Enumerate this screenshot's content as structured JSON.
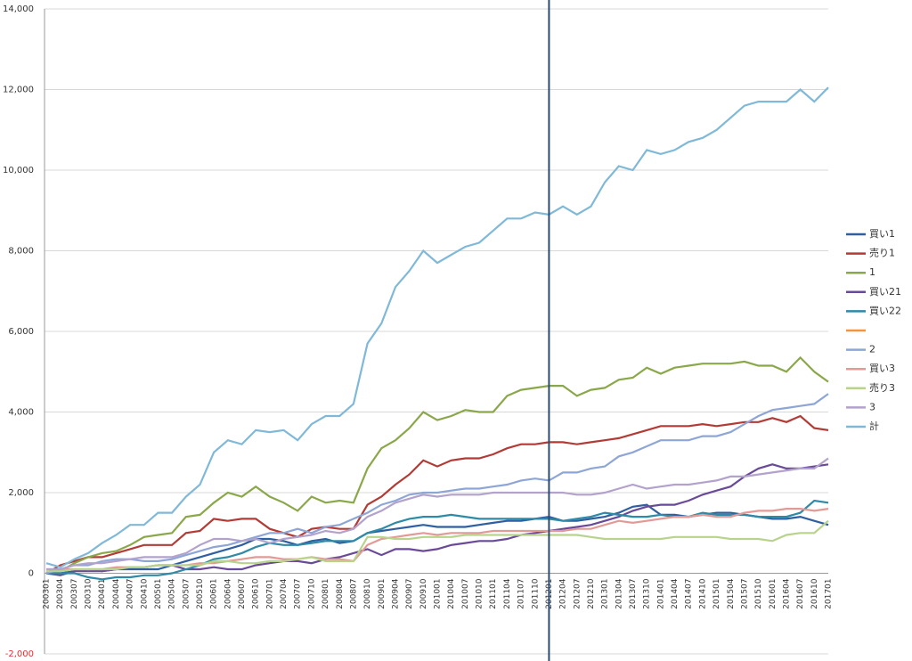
{
  "chart_data": {
    "type": "line",
    "categories": [
      "200301",
      "200304",
      "200307",
      "200310",
      "200401",
      "200404",
      "200407",
      "200410",
      "200501",
      "200504",
      "200507",
      "200510",
      "200601",
      "200604",
      "200607",
      "200610",
      "200701",
      "200704",
      "200707",
      "200710",
      "200801",
      "200804",
      "200807",
      "200810",
      "200901",
      "200904",
      "200907",
      "200910",
      "201001",
      "201004",
      "201007",
      "201010",
      "201101",
      "201104",
      "201107",
      "201110",
      "201201",
      "201204",
      "201207",
      "201210",
      "201301",
      "201304",
      "201307",
      "201310",
      "201401",
      "201404",
      "201407",
      "201410",
      "201501",
      "201504",
      "201507",
      "201510",
      "201601",
      "201604",
      "201607",
      "201610",
      "201701"
    ],
    "series": [
      {
        "name": "買い1",
        "color": "#2f5fa0",
        "values": [
          0,
          0,
          50,
          100,
          50,
          100,
          100,
          100,
          100,
          200,
          300,
          400,
          500,
          600,
          700,
          850,
          850,
          800,
          700,
          800,
          850,
          750,
          800,
          1000,
          1050,
          1100,
          1150,
          1200,
          1150,
          1150,
          1150,
          1200,
          1250,
          1300,
          1300,
          1350,
          1400,
          1300,
          1300,
          1350,
          1400,
          1500,
          1650,
          1700,
          1450,
          1450,
          1400,
          1450,
          1500,
          1500,
          1450,
          1400,
          1350,
          1350,
          1400,
          1300,
          1200
        ]
      },
      {
        "name": "売り1",
        "color": "#b23b36",
        "values": [
          0,
          200,
          300,
          400,
          400,
          500,
          600,
          700,
          700,
          700,
          1000,
          1050,
          1350,
          1300,
          1350,
          1350,
          1100,
          1000,
          900,
          1100,
          1150,
          1100,
          1100,
          1700,
          1900,
          2200,
          2450,
          2800,
          2650,
          2800,
          2850,
          2850,
          2950,
          3100,
          3200,
          3200,
          3250,
          3250,
          3200,
          3250,
          3300,
          3350,
          3450,
          3550,
          3650,
          3650,
          3650,
          3700,
          3650,
          3700,
          3750,
          3750,
          3850,
          3750,
          3900,
          3600,
          3550
        ]
      },
      {
        "name": "1",
        "color": "#8aa84a",
        "values": [
          0,
          50,
          250,
          400,
          500,
          550,
          700,
          900,
          950,
          1000,
          1400,
          1450,
          1750,
          2000,
          1900,
          2150,
          1900,
          1750,
          1550,
          1900,
          1750,
          1800,
          1750,
          2600,
          3100,
          3300,
          3600,
          4000,
          3800,
          3900,
          4050,
          4000,
          4000,
          4400,
          4550,
          4600,
          4650,
          4650,
          4400,
          4550,
          4600,
          4800,
          4850,
          5100,
          4950,
          5100,
          5150,
          5200,
          5200,
          5200,
          5250,
          5150,
          5150,
          5000,
          5350,
          5000,
          4750
        ]
      },
      {
        "name": "買い21",
        "color": "#6a4a98",
        "values": [
          0,
          -50,
          50,
          50,
          50,
          100,
          150,
          150,
          200,
          200,
          100,
          100,
          150,
          100,
          100,
          200,
          250,
          300,
          300,
          250,
          350,
          400,
          500,
          600,
          450,
          600,
          600,
          550,
          600,
          700,
          750,
          800,
          800,
          850,
          950,
          1000,
          1050,
          1100,
          1150,
          1200,
          1300,
          1400,
          1550,
          1650,
          1700,
          1700,
          1800,
          1950,
          2050,
          2150,
          2400,
          2600,
          2700,
          2600,
          2600,
          2650,
          2700
        ]
      },
      {
        "name": "買い22",
        "color": "#2e8aa6",
        "values": [
          0,
          0,
          0,
          -100,
          -150,
          -100,
          -100,
          -50,
          -50,
          0,
          100,
          200,
          350,
          400,
          500,
          650,
          750,
          700,
          700,
          750,
          800,
          800,
          800,
          1000,
          1100,
          1250,
          1350,
          1400,
          1400,
          1450,
          1400,
          1350,
          1350,
          1350,
          1350,
          1350,
          1350,
          1300,
          1350,
          1400,
          1500,
          1450,
          1400,
          1400,
          1450,
          1400,
          1400,
          1500,
          1450,
          1450,
          1450,
          1400,
          1400,
          1400,
          1500,
          1800,
          1750
        ]
      },
      {
        "name": "2",
        "color": "#8ea6d6",
        "values": [
          0,
          100,
          200,
          200,
          300,
          350,
          350,
          300,
          300,
          350,
          450,
          550,
          650,
          700,
          800,
          900,
          1000,
          1000,
          1100,
          1000,
          1150,
          1200,
          1350,
          1500,
          1700,
          1800,
          1950,
          2000,
          2000,
          2050,
          2100,
          2100,
          2150,
          2200,
          2300,
          2350,
          2300,
          2500,
          2500,
          2600,
          2650,
          2900,
          3000,
          3150,
          3300,
          3300,
          3300,
          3400,
          3400,
          3500,
          3700,
          3900,
          4050,
          4100,
          4150,
          4200,
          4450
        ]
      },
      {
        "name": "買い3",
        "color": "#e29a96",
        "values": [
          100,
          100,
          100,
          100,
          100,
          150,
          150,
          150,
          200,
          200,
          200,
          250,
          250,
          300,
          350,
          400,
          400,
          350,
          350,
          400,
          350,
          350,
          300,
          700,
          850,
          900,
          950,
          1000,
          950,
          1000,
          1000,
          1000,
          1050,
          1050,
          1050,
          1050,
          1050,
          1050,
          1100,
          1100,
          1200,
          1300,
          1250,
          1300,
          1350,
          1400,
          1400,
          1450,
          1400,
          1400,
          1500,
          1550,
          1550,
          1600,
          1600,
          1550,
          1600
        ]
      },
      {
        "name": "売り3",
        "color": "#b8d38c",
        "values": [
          50,
          50,
          100,
          100,
          100,
          100,
          150,
          150,
          200,
          200,
          200,
          200,
          300,
          300,
          250,
          250,
          300,
          300,
          350,
          400,
          300,
          300,
          300,
          900,
          900,
          850,
          850,
          900,
          900,
          900,
          950,
          950,
          950,
          950,
          950,
          950,
          950,
          950,
          950,
          900,
          850,
          850,
          850,
          850,
          850,
          900,
          900,
          900,
          900,
          850,
          850,
          850,
          800,
          950,
          1000,
          1000,
          1300
        ]
      },
      {
        "name": "3",
        "color": "#b2a2cc",
        "values": [
          100,
          100,
          200,
          250,
          250,
          300,
          350,
          400,
          400,
          400,
          500,
          700,
          850,
          850,
          800,
          850,
          750,
          850,
          900,
          950,
          1050,
          1000,
          1100,
          1400,
          1550,
          1750,
          1850,
          1950,
          1900,
          1950,
          1950,
          1950,
          2000,
          2000,
          2000,
          2000,
          2000,
          2000,
          1950,
          1950,
          2000,
          2100,
          2200,
          2100,
          2150,
          2200,
          2200,
          2250,
          2300,
          2400,
          2400,
          2450,
          2500,
          2550,
          2600,
          2600,
          2850
        ]
      },
      {
        "name": "計",
        "color": "#80b9d8",
        "values": [
          250,
          150,
          350,
          500,
          750,
          950,
          1200,
          1200,
          1500,
          1500,
          1900,
          2200,
          3000,
          3300,
          3200,
          3550,
          3500,
          3550,
          3300,
          3700,
          3900,
          3900,
          4200,
          5700,
          6200,
          7100,
          7500,
          8000,
          7700,
          7900,
          8100,
          8200,
          8500,
          8800,
          8800,
          8950,
          8900,
          9100,
          8900,
          9100,
          9700,
          10100,
          10000,
          10500,
          10400,
          10500,
          10700,
          10800,
          11000,
          11300,
          11600,
          11700,
          11700,
          11700,
          12000,
          11700,
          12050
        ]
      }
    ],
    "ylim": [
      -2000,
      14000
    ],
    "yticks": [
      {
        "value": -2000,
        "label": "-2,000"
      },
      0,
      {
        "value": 2000,
        "label": "2,000"
      },
      {
        "value": 4000,
        "label": "4,000"
      },
      {
        "value": 6000,
        "label": "6,000"
      },
      {
        "value": 8000,
        "label": "8,000"
      },
      {
        "value": 10000,
        "label": "10,000"
      },
      {
        "value": 12000,
        "label": "12,000"
      },
      {
        "value": 14000,
        "label": "14,000"
      }
    ],
    "grid": true,
    "negative_tick_color": "#e03030",
    "vline": "201201",
    "vline_color": "#2a4a78",
    "legend": "right"
  }
}
